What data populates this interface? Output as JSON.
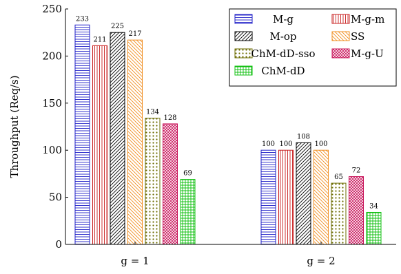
{
  "chart_data": {
    "type": "bar",
    "ylabel": "Throughput (Req/s)",
    "ylim": [
      0,
      250
    ],
    "yticks": [
      "0",
      "50",
      "100",
      "150",
      "200",
      "250"
    ],
    "categories": [
      "g = 1",
      "g = 2"
    ],
    "series": [
      {
        "name": "M-g",
        "values": [
          233,
          100
        ],
        "pattern": "hlines",
        "color": "#1f1fc8"
      },
      {
        "name": "M-g-m",
        "values": [
          211,
          100
        ],
        "pattern": "vlines",
        "color": "#c81e1e"
      },
      {
        "name": "M-op",
        "values": [
          225,
          108
        ],
        "pattern": "diag",
        "color": "#000000"
      },
      {
        "name": "SS",
        "values": [
          217,
          100
        ],
        "pattern": "diag",
        "color": "#f08c1e"
      },
      {
        "name": "ChM-dD-sso",
        "values": [
          134,
          65
        ],
        "pattern": "dots",
        "color": "#6b6b00"
      },
      {
        "name": "M-g-U",
        "values": [
          128,
          72
        ],
        "pattern": "cross",
        "color": "#c8145a"
      },
      {
        "name": "ChM-dD",
        "values": [
          69,
          34
        ],
        "pattern": "grid",
        "color": "#10c010"
      }
    ],
    "legend_position": "top-right",
    "grid": false
  }
}
